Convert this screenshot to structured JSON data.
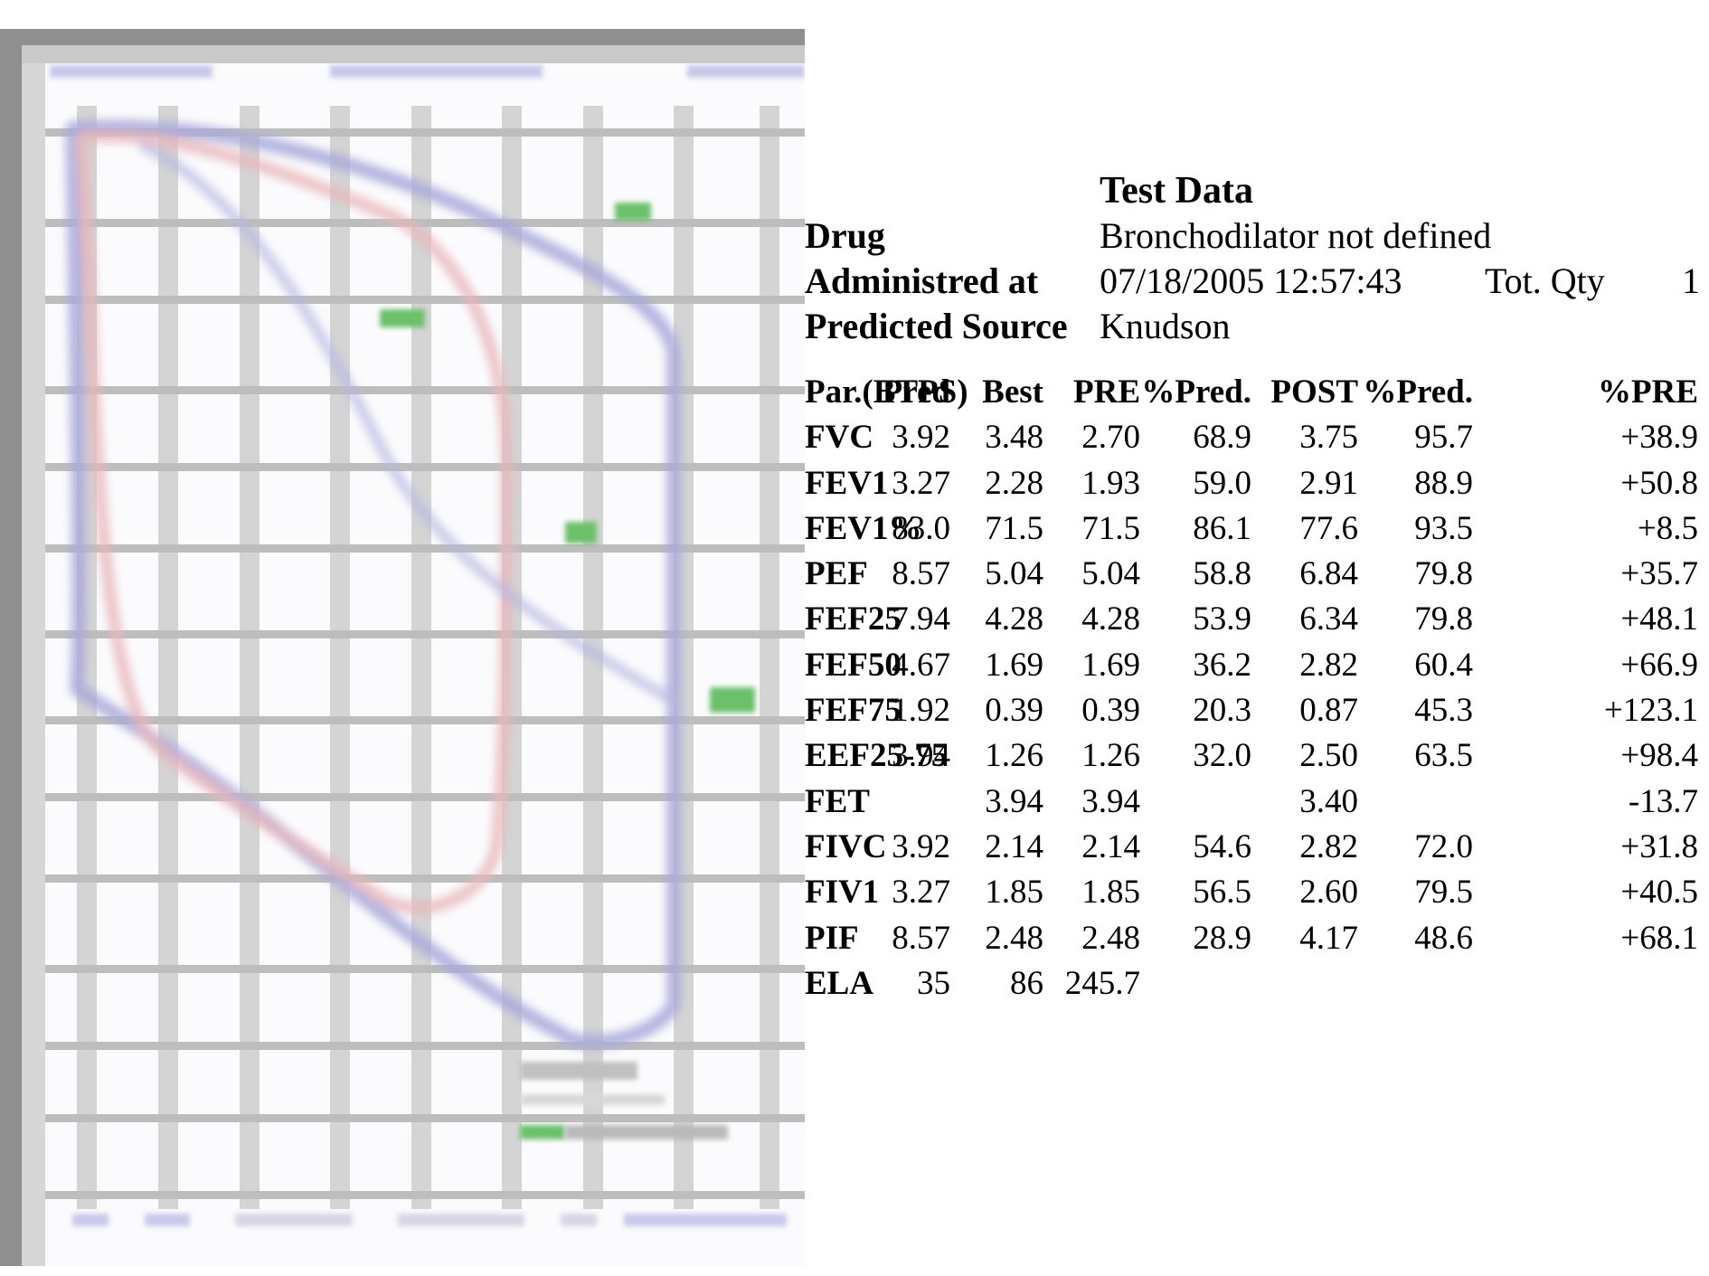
{
  "test_data": {
    "title": "Test  Data",
    "rows": [
      {
        "label": "Drug",
        "value": "Bronchodilator not defined"
      },
      {
        "label": "Administred at",
        "value": "07/18/2005 12:57:43",
        "qty_label": "Tot. Qty",
        "qty_value": "1"
      },
      {
        "label": "Predicted Source",
        "value": "Knudson"
      }
    ]
  },
  "table": {
    "headers": [
      "Par.(BTPS)",
      "Pred",
      "Best",
      "PRE",
      "%Pred.",
      "POST",
      "%Pred.",
      "%PRE"
    ],
    "rows": [
      [
        "FVC",
        "3.92",
        "3.48",
        "2.70",
        "68.9",
        "3.75",
        "95.7",
        "+38.9"
      ],
      [
        "FEV1",
        "3.27",
        "2.28",
        "1.93",
        "59.0",
        "2.91",
        "88.9",
        "+50.8"
      ],
      [
        "FEV1%",
        "83.0",
        "71.5",
        "71.5",
        "86.1",
        "77.6",
        "93.5",
        "+8.5"
      ],
      [
        "PEF",
        "8.57",
        "5.04",
        "5.04",
        "58.8",
        "6.84",
        "79.8",
        "+35.7"
      ],
      [
        "FEF25",
        "7.94",
        "4.28",
        "4.28",
        "53.9",
        "6.34",
        "79.8",
        "+48.1"
      ],
      [
        "FEF50",
        "4.67",
        "1.69",
        "1.69",
        "36.2",
        "2.82",
        "60.4",
        "+66.9"
      ],
      [
        "FEF75",
        "1.92",
        "0.39",
        "0.39",
        "20.3",
        "0.87",
        "45.3",
        "+123.1"
      ],
      [
        "EEF25-75",
        "3.94",
        "1.26",
        "1.26",
        "32.0",
        "2.50",
        "63.5",
        "+98.4"
      ],
      [
        "FET",
        "",
        "3.94",
        "3.94",
        "",
        "3.40",
        "",
        "-13.7"
      ],
      [
        "FIVC",
        "3.92",
        "2.14",
        "2.14",
        "54.6",
        "2.82",
        "72.0",
        "+31.8"
      ],
      [
        "FIV1",
        "3.27",
        "1.85",
        "1.85",
        "56.5",
        "2.60",
        "79.5",
        "+40.5"
      ],
      [
        "PIF",
        "8.57",
        "2.48",
        "2.48",
        "28.9",
        "4.17",
        "48.6",
        "+68.1"
      ],
      [
        "ELA",
        "35",
        "86",
        "245.7",
        "",
        "",
        "",
        ""
      ]
    ]
  },
  "colors": {
    "frame": "#8f8f8f",
    "grid": "#cdcdcd",
    "curve_blue": "#8a8ad0",
    "curve_red": "#e0a0a8",
    "marker_green": "#6cc06c"
  }
}
